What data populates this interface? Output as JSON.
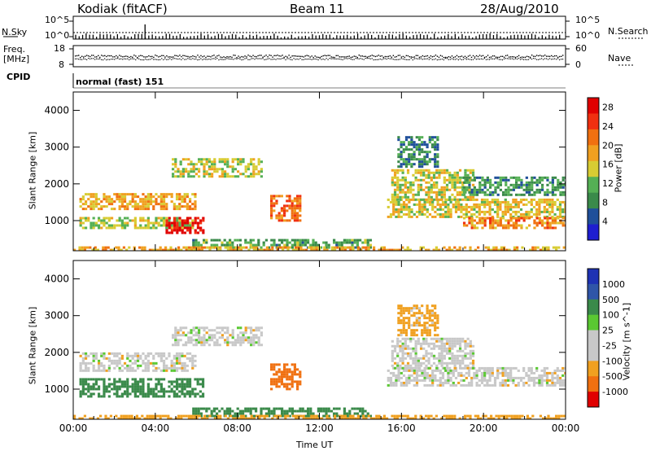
{
  "header": {
    "radar": "Kodiak (fitACF)",
    "beam": "Beam 11",
    "date": "28/Aug/2010"
  },
  "top_panels": {
    "nsky_label": "N.Sky",
    "nsky_ticks": [
      "10^5",
      "10^0"
    ],
    "nsearch_label": "N.Search",
    "nsearch_ticks": [
      "10^5",
      "10^0"
    ],
    "freq_label_line1": "Freq.",
    "freq_label_line2": "[MHz]",
    "freq_ticks": [
      "18",
      "8"
    ],
    "nave_label": "Nave",
    "nave_ticks": [
      "60",
      "0"
    ],
    "cpid_label": "CPID",
    "cpid_text": "normal (fast) 151"
  },
  "colors": {
    "power_scale": [
      "#1e1ed0",
      "#1f4f9a",
      "#3a8a4a",
      "#55b055",
      "#d8cc33",
      "#f0a020",
      "#f07010",
      "#f03010",
      "#e00000"
    ],
    "velocity_scale": [
      "#1e32b4",
      "#2f55a8",
      "#3a8a4a",
      "#5ac832",
      "#c8c8c8",
      "#c8c8c8",
      "#f0a020",
      "#f07010",
      "#e00000"
    ]
  },
  "chart_data": [
    {
      "type": "heatmap",
      "title": "Power",
      "ylabel": "Slant Range [km]",
      "xlabel": "",
      "x_ticks": [
        "00:00",
        "04:00",
        "08:00",
        "12:00",
        "16:00",
        "20:00",
        "00:00"
      ],
      "xlim_hours": [
        0,
        24
      ],
      "ylim_km": [
        180,
        4500
      ],
      "y_ticks": [
        "1000",
        "2000",
        "3000",
        "4000"
      ],
      "colorbar_label": "Power [dB]",
      "colorbar_ticks": [
        "4",
        "8",
        "12",
        "16",
        "20",
        "24",
        "28"
      ],
      "colorbar_range": [
        0,
        30
      ],
      "bands": [
        {
          "t0": 0.3,
          "t1": 5.8,
          "r0": 800,
          "r1": 1100,
          "value": 14
        },
        {
          "t0": 4.5,
          "t1": 6.3,
          "r0": 700,
          "r1": 1100,
          "value": 29
        },
        {
          "t0": 5.8,
          "t1": 14.5,
          "r0": 250,
          "r1": 500,
          "value": 10
        },
        {
          "t0": 0.3,
          "t1": 6.0,
          "r0": 1300,
          "r1": 1750,
          "value": 18
        },
        {
          "t0": 4.8,
          "t1": 9.2,
          "r0": 2200,
          "r1": 2700,
          "value": 14
        },
        {
          "t0": 9.6,
          "t1": 11.0,
          "r0": 1000,
          "r1": 1700,
          "value": 22
        },
        {
          "t0": 15.3,
          "t1": 24.0,
          "r0": 1100,
          "r1": 1600,
          "value": 16
        },
        {
          "t0": 15.5,
          "t1": 19.5,
          "r0": 1600,
          "r1": 2400,
          "value": 15
        },
        {
          "t0": 19.0,
          "t1": 24.0,
          "r0": 1700,
          "r1": 2200,
          "value": 9
        },
        {
          "t0": 15.8,
          "t1": 17.8,
          "r0": 2500,
          "r1": 3300,
          "value": 8
        },
        {
          "t0": 0.0,
          "t1": 24.0,
          "r0": 180,
          "r1": 300,
          "value": 18
        },
        {
          "t0": 19.0,
          "t1": 24.0,
          "r0": 800,
          "r1": 1100,
          "value": 20
        }
      ]
    },
    {
      "type": "heatmap",
      "title": "Velocity",
      "ylabel": "Slant Range [km]",
      "xlabel": "Time UT",
      "x_ticks": [
        "00:00",
        "04:00",
        "08:00",
        "12:00",
        "16:00",
        "20:00",
        "00:00"
      ],
      "xlim_hours": [
        0,
        24
      ],
      "ylim_km": [
        180,
        4500
      ],
      "y_ticks": [
        "1000",
        "2000",
        "3000",
        "4000"
      ],
      "colorbar_label": "Velocity [m s^-1]",
      "colorbar_ticks": [
        "1000",
        "500",
        "100",
        "25",
        "-25",
        "-100",
        "-500",
        "-1000"
      ],
      "bands": [
        {
          "t0": 0.3,
          "t1": 6.3,
          "r0": 800,
          "r1": 1300,
          "value": 150
        },
        {
          "t0": 5.8,
          "t1": 14.5,
          "r0": 250,
          "r1": 500,
          "value": 120
        },
        {
          "t0": 0.3,
          "t1": 6.0,
          "r0": 1500,
          "r1": 2000,
          "value": 0
        },
        {
          "t0": 4.8,
          "t1": 9.2,
          "r0": 2200,
          "r1": 2700,
          "value": 0
        },
        {
          "t0": 9.6,
          "t1": 11.0,
          "r0": 1000,
          "r1": 1700,
          "value": -300
        },
        {
          "t0": 15.3,
          "t1": 24.0,
          "r0": 1100,
          "r1": 1600,
          "value": 0
        },
        {
          "t0": 15.5,
          "t1": 19.5,
          "r0": 1600,
          "r1": 2400,
          "value": 0
        },
        {
          "t0": 15.8,
          "t1": 17.8,
          "r0": 2500,
          "r1": 3300,
          "value": -50
        },
        {
          "t0": 0.0,
          "t1": 24.0,
          "r0": 180,
          "r1": 300,
          "value": -60
        }
      ]
    }
  ]
}
